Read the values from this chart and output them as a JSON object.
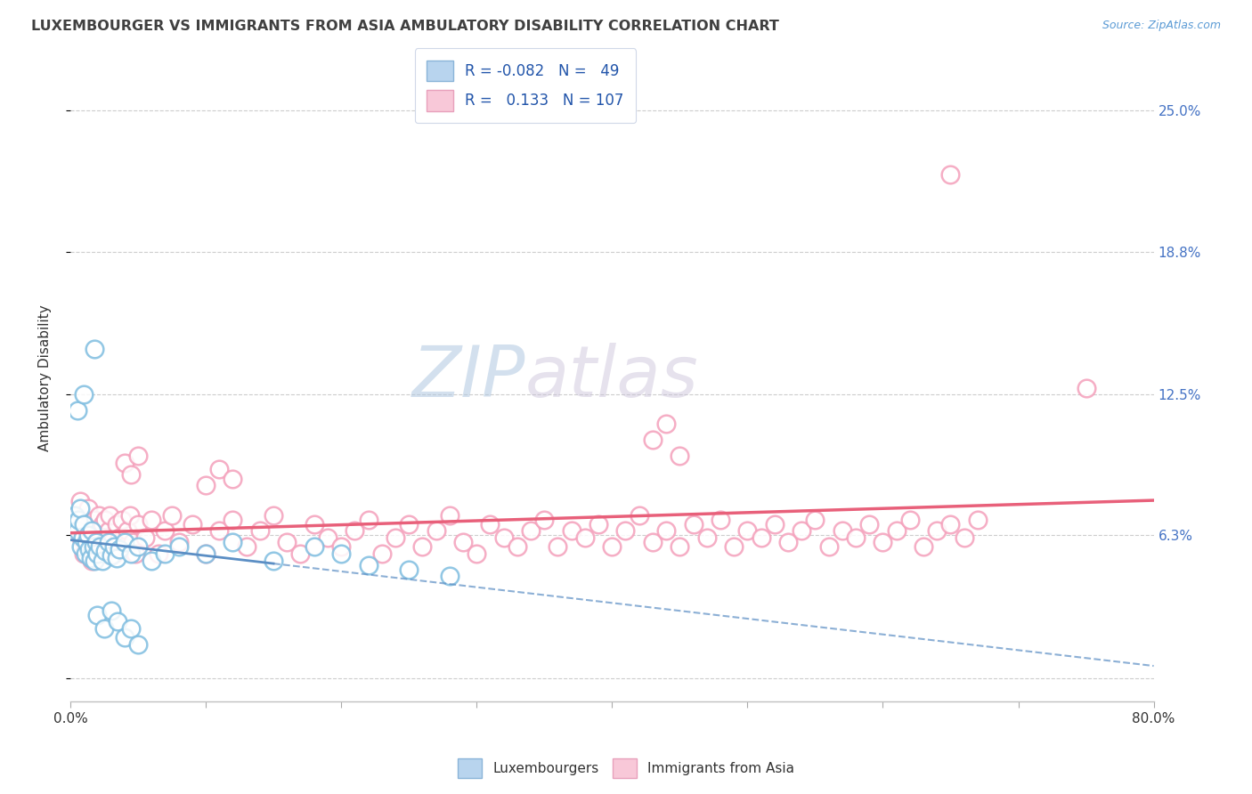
{
  "title": "LUXEMBOURGER VS IMMIGRANTS FROM ASIA AMBULATORY DISABILITY CORRELATION CHART",
  "source_text": "Source: ZipAtlas.com",
  "ylabel": "Ambulatory Disability",
  "xlim": [
    0.0,
    0.8
  ],
  "ylim": [
    -0.01,
    0.275
  ],
  "ytick_positions": [
    0.0,
    0.063,
    0.125,
    0.188,
    0.25
  ],
  "ytick_labels": [
    "",
    "6.3%",
    "12.5%",
    "18.8%",
    "25.0%"
  ],
  "xtick_positions": [
    0.0,
    0.1,
    0.2,
    0.3,
    0.4,
    0.5,
    0.6,
    0.7,
    0.8
  ],
  "xtick_labels": [
    "0.0%",
    "",
    "",
    "",
    "",
    "",
    "",
    "",
    "80.0%"
  ],
  "blue_color": "#7fbde0",
  "pink_color": "#f4a0bb",
  "blue_line_color": "#5b8ec4",
  "pink_line_color": "#e8607a",
  "watermark_text": "ZIPatlas",
  "lux_points": [
    [
      0.003,
      0.072
    ],
    [
      0.004,
      0.068
    ],
    [
      0.005,
      0.065
    ],
    [
      0.006,
      0.07
    ],
    [
      0.007,
      0.075
    ],
    [
      0.008,
      0.058
    ],
    [
      0.009,
      0.062
    ],
    [
      0.01,
      0.068
    ],
    [
      0.011,
      0.055
    ],
    [
      0.012,
      0.06
    ],
    [
      0.013,
      0.063
    ],
    [
      0.014,
      0.057
    ],
    [
      0.015,
      0.053
    ],
    [
      0.016,
      0.065
    ],
    [
      0.017,
      0.058
    ],
    [
      0.018,
      0.052
    ],
    [
      0.019,
      0.06
    ],
    [
      0.02,
      0.055
    ],
    [
      0.022,
      0.058
    ],
    [
      0.024,
      0.052
    ],
    [
      0.026,
      0.056
    ],
    [
      0.028,
      0.06
    ],
    [
      0.03,
      0.054
    ],
    [
      0.032,
      0.058
    ],
    [
      0.034,
      0.053
    ],
    [
      0.036,
      0.057
    ],
    [
      0.04,
      0.06
    ],
    [
      0.045,
      0.055
    ],
    [
      0.05,
      0.058
    ],
    [
      0.06,
      0.052
    ],
    [
      0.07,
      0.055
    ],
    [
      0.08,
      0.058
    ],
    [
      0.1,
      0.055
    ],
    [
      0.12,
      0.06
    ],
    [
      0.15,
      0.052
    ],
    [
      0.18,
      0.058
    ],
    [
      0.2,
      0.055
    ],
    [
      0.22,
      0.05
    ],
    [
      0.25,
      0.048
    ],
    [
      0.28,
      0.045
    ],
    [
      0.02,
      0.028
    ],
    [
      0.025,
      0.022
    ],
    [
      0.03,
      0.03
    ],
    [
      0.035,
      0.025
    ],
    [
      0.04,
      0.018
    ],
    [
      0.045,
      0.022
    ],
    [
      0.05,
      0.015
    ],
    [
      0.005,
      0.118
    ],
    [
      0.01,
      0.125
    ],
    [
      0.018,
      0.145
    ]
  ],
  "asia_points": [
    [
      0.005,
      0.072
    ],
    [
      0.007,
      0.078
    ],
    [
      0.008,
      0.062
    ],
    [
      0.009,
      0.07
    ],
    [
      0.01,
      0.055
    ],
    [
      0.011,
      0.065
    ],
    [
      0.012,
      0.06
    ],
    [
      0.013,
      0.075
    ],
    [
      0.014,
      0.058
    ],
    [
      0.015,
      0.068
    ],
    [
      0.016,
      0.052
    ],
    [
      0.017,
      0.062
    ],
    [
      0.018,
      0.07
    ],
    [
      0.019,
      0.058
    ],
    [
      0.02,
      0.065
    ],
    [
      0.021,
      0.072
    ],
    [
      0.022,
      0.055
    ],
    [
      0.023,
      0.06
    ],
    [
      0.024,
      0.068
    ],
    [
      0.025,
      0.055
    ],
    [
      0.026,
      0.07
    ],
    [
      0.027,
      0.058
    ],
    [
      0.028,
      0.065
    ],
    [
      0.029,
      0.072
    ],
    [
      0.03,
      0.06
    ],
    [
      0.032,
      0.055
    ],
    [
      0.034,
      0.068
    ],
    [
      0.036,
      0.062
    ],
    [
      0.038,
      0.07
    ],
    [
      0.04,
      0.058
    ],
    [
      0.042,
      0.065
    ],
    [
      0.044,
      0.072
    ],
    [
      0.046,
      0.06
    ],
    [
      0.048,
      0.055
    ],
    [
      0.05,
      0.068
    ],
    [
      0.055,
      0.062
    ],
    [
      0.06,
      0.07
    ],
    [
      0.065,
      0.055
    ],
    [
      0.07,
      0.065
    ],
    [
      0.075,
      0.072
    ],
    [
      0.08,
      0.06
    ],
    [
      0.09,
      0.068
    ],
    [
      0.1,
      0.055
    ],
    [
      0.11,
      0.065
    ],
    [
      0.12,
      0.07
    ],
    [
      0.13,
      0.058
    ],
    [
      0.14,
      0.065
    ],
    [
      0.15,
      0.072
    ],
    [
      0.16,
      0.06
    ],
    [
      0.17,
      0.055
    ],
    [
      0.18,
      0.068
    ],
    [
      0.19,
      0.062
    ],
    [
      0.2,
      0.058
    ],
    [
      0.21,
      0.065
    ],
    [
      0.22,
      0.07
    ],
    [
      0.23,
      0.055
    ],
    [
      0.24,
      0.062
    ],
    [
      0.25,
      0.068
    ],
    [
      0.26,
      0.058
    ],
    [
      0.27,
      0.065
    ],
    [
      0.28,
      0.072
    ],
    [
      0.29,
      0.06
    ],
    [
      0.3,
      0.055
    ],
    [
      0.31,
      0.068
    ],
    [
      0.32,
      0.062
    ],
    [
      0.33,
      0.058
    ],
    [
      0.34,
      0.065
    ],
    [
      0.35,
      0.07
    ],
    [
      0.36,
      0.058
    ],
    [
      0.37,
      0.065
    ],
    [
      0.38,
      0.062
    ],
    [
      0.39,
      0.068
    ],
    [
      0.4,
      0.058
    ],
    [
      0.41,
      0.065
    ],
    [
      0.42,
      0.072
    ],
    [
      0.43,
      0.06
    ],
    [
      0.44,
      0.065
    ],
    [
      0.45,
      0.058
    ],
    [
      0.46,
      0.068
    ],
    [
      0.47,
      0.062
    ],
    [
      0.48,
      0.07
    ],
    [
      0.49,
      0.058
    ],
    [
      0.5,
      0.065
    ],
    [
      0.51,
      0.062
    ],
    [
      0.52,
      0.068
    ],
    [
      0.53,
      0.06
    ],
    [
      0.54,
      0.065
    ],
    [
      0.55,
      0.07
    ],
    [
      0.56,
      0.058
    ],
    [
      0.57,
      0.065
    ],
    [
      0.58,
      0.062
    ],
    [
      0.59,
      0.068
    ],
    [
      0.6,
      0.06
    ],
    [
      0.61,
      0.065
    ],
    [
      0.62,
      0.07
    ],
    [
      0.63,
      0.058
    ],
    [
      0.64,
      0.065
    ],
    [
      0.65,
      0.068
    ],
    [
      0.66,
      0.062
    ],
    [
      0.67,
      0.07
    ],
    [
      0.04,
      0.095
    ],
    [
      0.045,
      0.09
    ],
    [
      0.05,
      0.098
    ],
    [
      0.1,
      0.085
    ],
    [
      0.11,
      0.092
    ],
    [
      0.12,
      0.088
    ],
    [
      0.43,
      0.105
    ],
    [
      0.44,
      0.112
    ],
    [
      0.45,
      0.098
    ],
    [
      0.65,
      0.222
    ],
    [
      0.75,
      0.128
    ]
  ]
}
